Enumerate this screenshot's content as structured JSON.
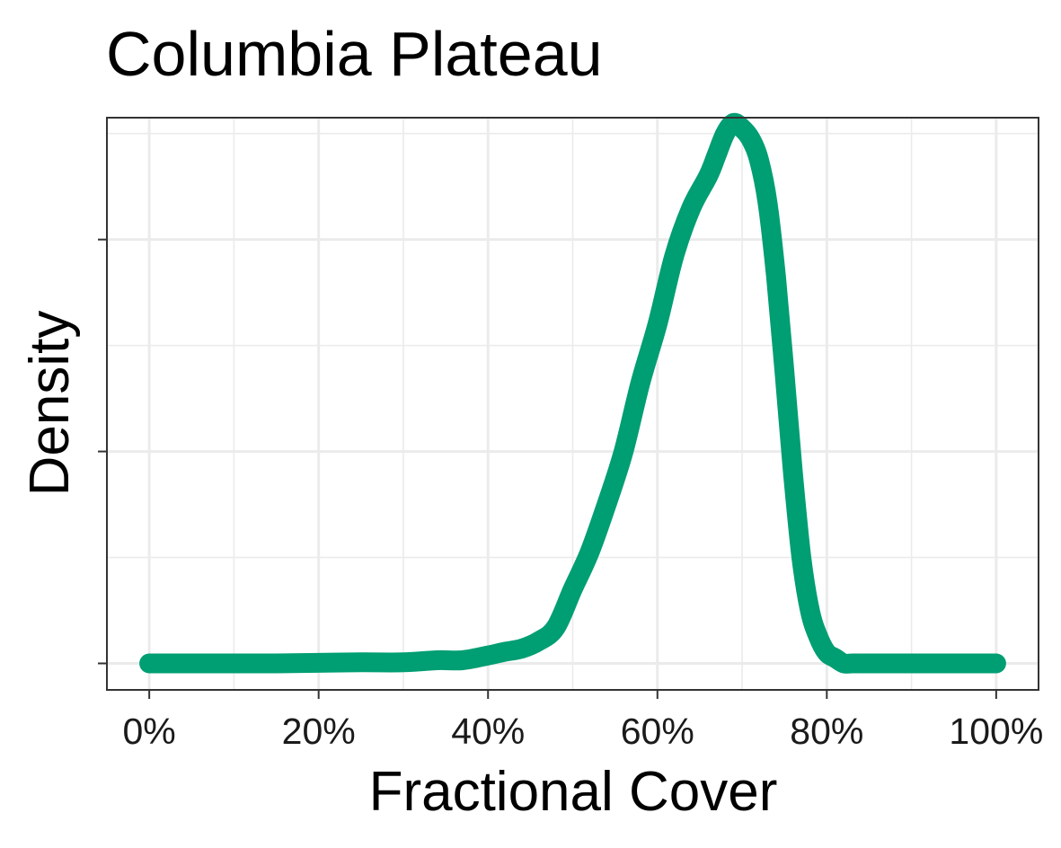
{
  "chart_data": {
    "type": "line",
    "title": "Columbia Plateau",
    "xlabel": "Fractional Cover",
    "ylabel": "Density",
    "xlim": [
      -0.05,
      1.05
    ],
    "ylim": [
      -0.05,
      1.03
    ],
    "x_major_ticks": [
      0,
      0.2,
      0.4,
      0.6,
      0.8,
      1.0
    ],
    "x_tick_labels": [
      "0%",
      "20%",
      "40%",
      "60%",
      "80%",
      "100%"
    ],
    "y_tick_labels_shown": false,
    "y_major_ticks": [
      0,
      0.4,
      0.8
    ],
    "y_minor_ticks": [
      0.2,
      0.6,
      1.0
    ],
    "grid": true,
    "colors": {
      "series": "#009E73"
    },
    "series": [
      {
        "x": [
          0,
          0.05,
          0.1,
          0.15,
          0.2,
          0.25,
          0.3,
          0.34,
          0.37,
          0.4,
          0.42,
          0.44,
          0.46,
          0.48,
          0.5,
          0.52,
          0.54,
          0.56,
          0.58,
          0.6,
          0.62,
          0.64,
          0.66,
          0.67,
          0.68,
          0.69,
          0.7,
          0.71,
          0.72,
          0.73,
          0.74,
          0.75,
          0.76,
          0.77,
          0.78,
          0.79,
          0.8,
          0.81,
          0.82,
          0.83,
          0.84,
          0.85,
          0.87,
          0.9,
          0.95,
          1.0
        ],
        "values": [
          0,
          0,
          0,
          0,
          0.001,
          0.002,
          0.002,
          0.006,
          0.006,
          0.015,
          0.022,
          0.028,
          0.042,
          0.068,
          0.14,
          0.21,
          0.3,
          0.4,
          0.53,
          0.64,
          0.77,
          0.86,
          0.92,
          0.96,
          1.0,
          1.02,
          1.01,
          0.99,
          0.95,
          0.87,
          0.73,
          0.55,
          0.36,
          0.2,
          0.1,
          0.05,
          0.02,
          0.01,
          0,
          0,
          0,
          0,
          0,
          0,
          0,
          0
        ]
      }
    ]
  }
}
